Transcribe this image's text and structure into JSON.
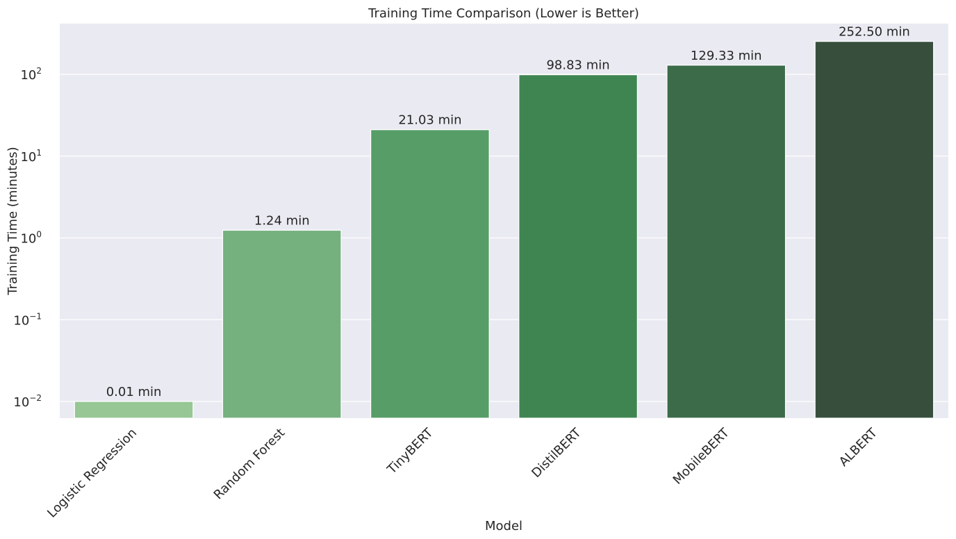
{
  "chart_data": {
    "type": "bar",
    "title": "Training Time Comparison (Lower is Better)",
    "xlabel": "Model",
    "ylabel": "Training Time (minutes)",
    "yscale": "log",
    "ylim": [
      0.006,
      400
    ],
    "grid": true,
    "categories": [
      "Logistic Regression",
      "Random Forest",
      "TinyBERT",
      "DistilBERT",
      "MobileBERT",
      "ALBERT"
    ],
    "values": [
      0.01,
      1.24,
      21.03,
      98.83,
      129.33,
      252.5
    ],
    "data_labels": [
      "0.01 min",
      "1.24 min",
      "21.03 min",
      "98.83 min",
      "129.33 min",
      "252.50 min"
    ],
    "colors": [
      "#96c795",
      "#75b07f",
      "#569d67",
      "#3f8552",
      "#3c6b4a",
      "#374e3d"
    ],
    "background": "#eaeaf2",
    "y_ticks": [
      {
        "base": "10",
        "exp": "−2",
        "value": 0.01
      },
      {
        "base": "10",
        "exp": "−1",
        "value": 0.1
      },
      {
        "base": "10",
        "exp": "0",
        "value": 1
      },
      {
        "base": "10",
        "exp": "1",
        "value": 10
      },
      {
        "base": "10",
        "exp": "2",
        "value": 100
      }
    ]
  }
}
